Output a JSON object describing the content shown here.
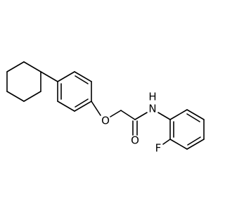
{
  "atoms": {
    "ether_o": "O",
    "carbonyl_o": "O",
    "amide_n": "N",
    "amide_h": "H",
    "fluorine": "F"
  }
}
